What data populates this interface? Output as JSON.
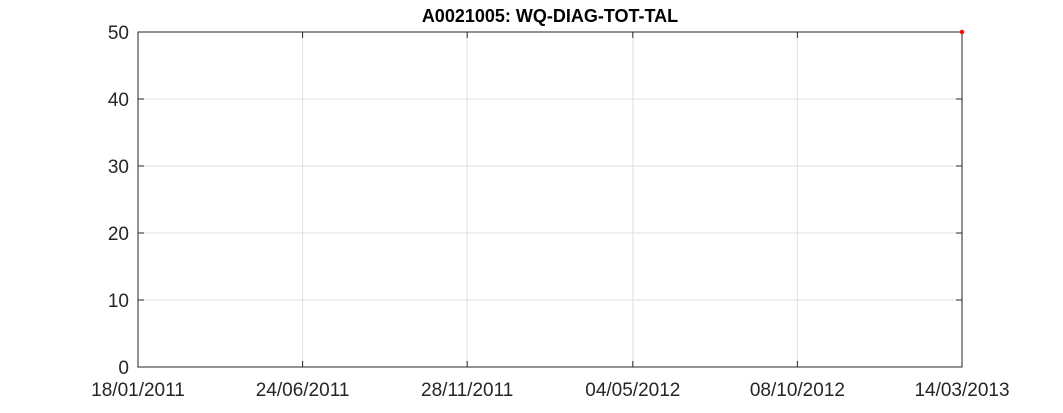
{
  "chart_data": {
    "type": "scatter",
    "title": "A0021005: WQ-DIAG-TOT-TAL",
    "xlabel": "",
    "ylabel": "",
    "x_axis_type": "date",
    "xlim": [
      "18/01/2011",
      "14/03/2013"
    ],
    "ylim": [
      0,
      50
    ],
    "x_ticks": [
      "18/01/2011",
      "24/06/2011",
      "28/11/2011",
      "04/05/2012",
      "08/10/2012",
      "14/03/2013"
    ],
    "y_ticks": [
      "0",
      "10",
      "20",
      "30",
      "40",
      "50"
    ],
    "grid": true,
    "series": [
      {
        "color": "#ff0000",
        "points": [
          {
            "x": "14/03/2013",
            "y": 50
          }
        ]
      }
    ]
  }
}
